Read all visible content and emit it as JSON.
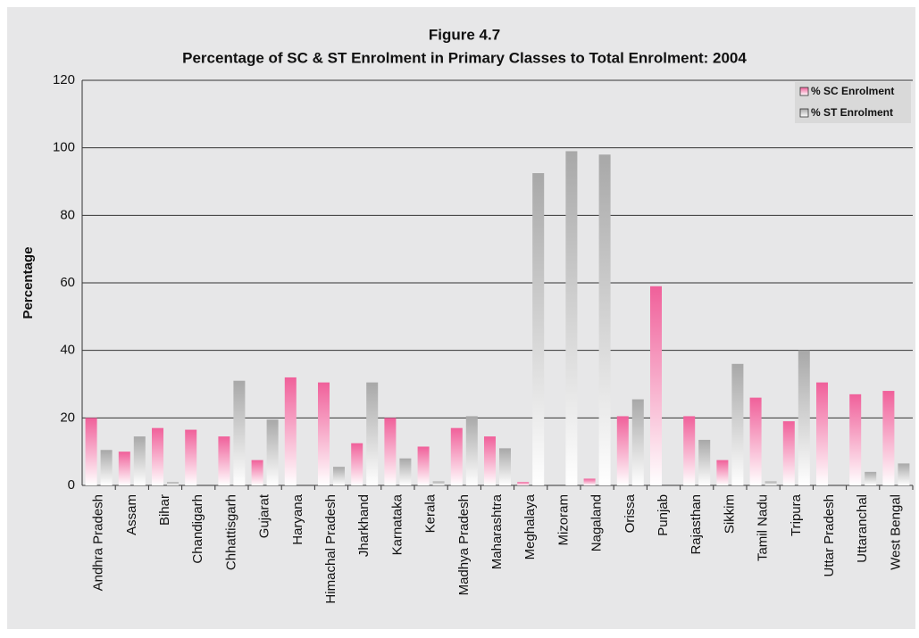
{
  "chart_data": {
    "type": "bar",
    "title": "Figure 4.7",
    "subtitle": "Percentage of SC & ST Enrolment in Primary Classes to Total Enrolment: 2004",
    "y_label": "Percentage",
    "categories": [
      "Andhra Pradesh",
      "Assam",
      "Bihar",
      "Chandigarh",
      "Chhattisgarh",
      "Gujarat",
      "Haryana",
      "Himachal Pradesh",
      "Jharkhand",
      "Karnataka",
      "Kerala",
      "Madhya Pradesh",
      "Maharashtra",
      "Meghalaya",
      "Mizoram",
      "Nagaland",
      "Orissa",
      "Punjab",
      "Rajasthan",
      "Sikkim",
      "Tamil Nadu",
      "Tripura",
      "Uttar Pradesh",
      "Uttaranchal",
      "West Bengal"
    ],
    "series": [
      {
        "name": "% SC Enrolment",
        "color": "#f0609a",
        "values": [
          20,
          10,
          17,
          16.5,
          14.5,
          7.5,
          32,
          30.5,
          12.5,
          20,
          11.5,
          17,
          14.5,
          1,
          0,
          2,
          20.5,
          59,
          20.5,
          7.5,
          26,
          19,
          30.5,
          27,
          28
        ]
      },
      {
        "name": "% ST Enrolment",
        "color": "#a8a8a8",
        "values": [
          10.5,
          14.5,
          1,
          0,
          31,
          19.5,
          0,
          5.5,
          30.5,
          8,
          1.2,
          20.5,
          11,
          92.5,
          99,
          98,
          25.5,
          0,
          13.5,
          36,
          1.2,
          40,
          0,
          4,
          6.5
        ]
      }
    ],
    "ylim": [
      0,
      120
    ],
    "yticks": [
      0,
      20,
      40,
      60,
      80,
      100,
      120
    ],
    "grid": true,
    "legend": "top-right"
  }
}
